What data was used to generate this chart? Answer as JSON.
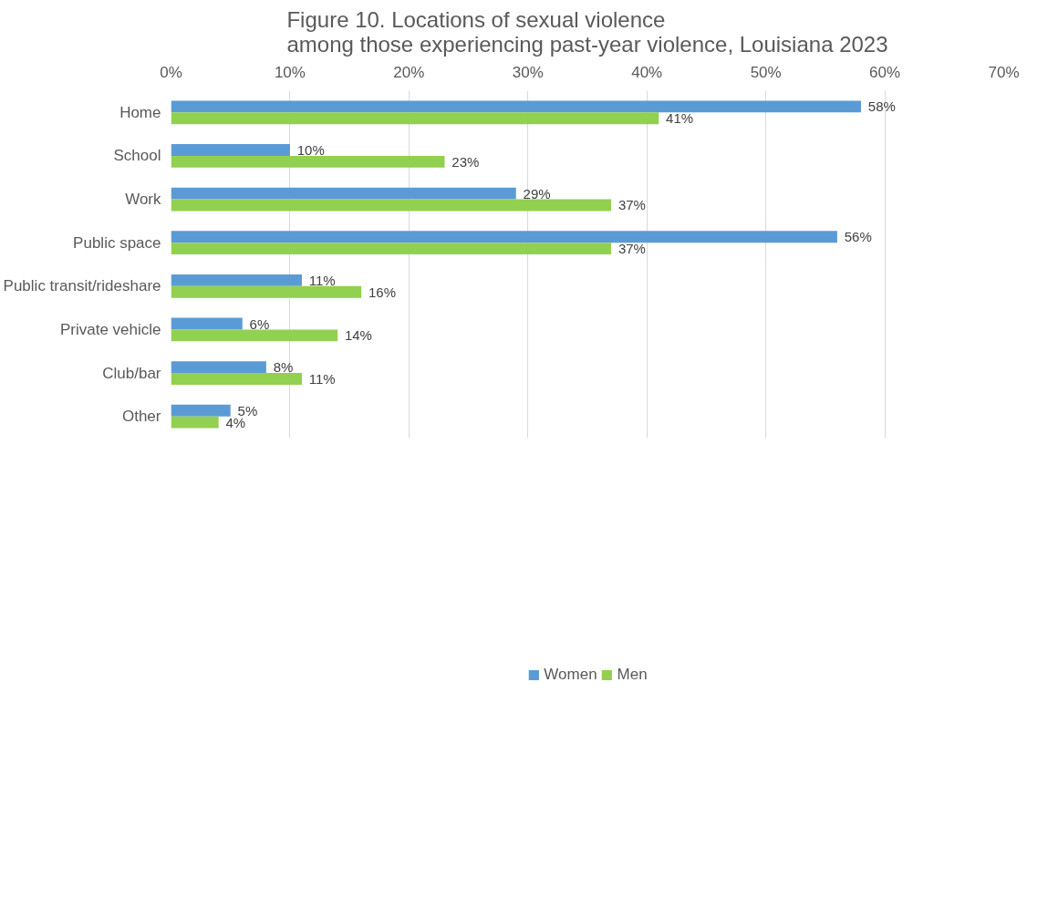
{
  "chart_data": {
    "type": "bar",
    "orientation": "horizontal",
    "title": "Figure 10. Locations of sexual violence\namong those experiencing past-year violence, Louisiana 2023",
    "categories": [
      "Home",
      "School",
      "Work",
      "Public space",
      "Public transit/rideshare",
      "Private vehicle",
      "Club/bar",
      "Other"
    ],
    "series": [
      {
        "name": "Women",
        "color": "#5b9bd5",
        "values": [
          58,
          10,
          29,
          56,
          11,
          6,
          8,
          5
        ],
        "value_labels": [
          "58%",
          "10%",
          "29%",
          "56%",
          "11%",
          "6%",
          "8%",
          "5%"
        ]
      },
      {
        "name": "Men",
        "color": "#92d050",
        "values": [
          41,
          23,
          37,
          37,
          16,
          14,
          11,
          4
        ],
        "value_labels": [
          "41%",
          "23%",
          "37%",
          "37%",
          "16%",
          "14%",
          "11%",
          "4%"
        ]
      }
    ],
    "xlim": [
      0,
      70
    ],
    "xticks": [
      {
        "value": 0,
        "label": "0%"
      },
      {
        "value": 10,
        "label": "10%"
      },
      {
        "value": 20,
        "label": "20%"
      },
      {
        "value": 30,
        "label": "30%"
      },
      {
        "value": 40,
        "label": "40%"
      },
      {
        "value": 50,
        "label": "50%"
      },
      {
        "value": 60,
        "label": "60%"
      },
      {
        "value": 70,
        "label": "70%"
      }
    ],
    "grid": "x",
    "legend": "bottom"
  }
}
